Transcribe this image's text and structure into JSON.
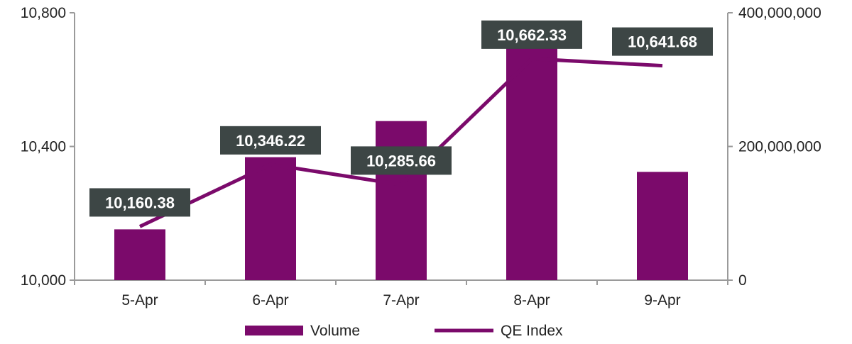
{
  "chart_data": {
    "type": "bar",
    "categories": [
      "5-Apr",
      "6-Apr",
      "7-Apr",
      "8-Apr",
      "9-Apr"
    ],
    "series": [
      {
        "name": "Volume",
        "type": "bar",
        "axis": "right",
        "values": [
          76000000,
          184000000,
          238000000,
          352000000,
          162000000
        ]
      },
      {
        "name": "QE Index",
        "type": "line",
        "axis": "left",
        "values": [
          10160.38,
          10346.22,
          10285.66,
          10662.33,
          10641.68
        ]
      }
    ],
    "data_labels": [
      "10,160.38",
      "10,346.22",
      "10,285.66",
      "10,662.33",
      "10,641.68"
    ],
    "y_left": {
      "ylim": [
        10000,
        10800
      ],
      "ticks": [
        10000,
        10400,
        10800
      ],
      "tick_labels": [
        "10,000",
        "10,400",
        "10,800"
      ]
    },
    "y_right": {
      "ylim": [
        0,
        400000000
      ],
      "ticks": [
        0,
        200000000,
        400000000
      ],
      "tick_labels": [
        "0",
        "200,000,000",
        "400,000,000"
      ]
    },
    "grid": false,
    "legend": {
      "position": "bottom",
      "entries": [
        "Volume",
        "QE Index"
      ]
    },
    "colors": {
      "volume": "#7b0a6b",
      "qe_index": "#7b0a6b",
      "label_box": "#3d4645",
      "axis": "#9a9a9a"
    }
  }
}
